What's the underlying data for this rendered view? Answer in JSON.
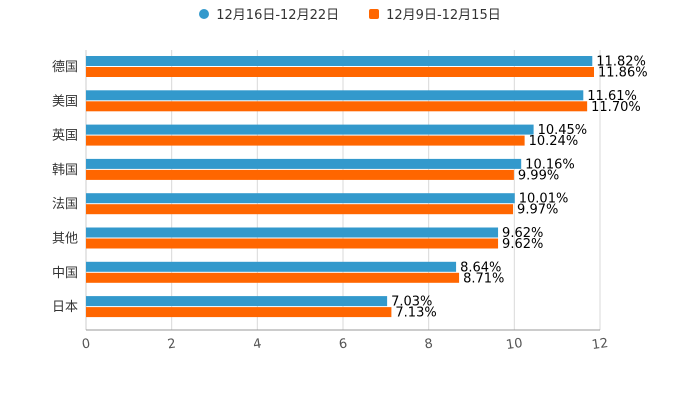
{
  "chart_data": {
    "type": "bar",
    "orientation": "horizontal",
    "categories": [
      "德国",
      "美国",
      "英国",
      "韩国",
      "法国",
      "其他",
      "中国",
      "日本"
    ],
    "series": [
      {
        "name": "12月16日-12月22日",
        "color": "#3399cc",
        "marker": "circle",
        "values": [
          11.82,
          11.61,
          10.45,
          10.16,
          10.01,
          9.62,
          8.64,
          7.03
        ],
        "labels": [
          "11.82%",
          "11.61%",
          "10.45%",
          "10.16%",
          "10.01%",
          "9.62%",
          "8.64%",
          "7.03%"
        ]
      },
      {
        "name": "12月9日-12月15日",
        "color": "#ff6600",
        "marker": "square",
        "values": [
          11.86,
          11.7,
          10.24,
          9.99,
          9.97,
          9.62,
          8.71,
          7.13
        ],
        "labels": [
          "11.86%",
          "11.70%",
          "10.24%",
          "9.99%",
          "9.97%",
          "9.62%",
          "8.71%",
          "7.13%"
        ]
      }
    ],
    "xlim": [
      0,
      12
    ],
    "x_ticks": [
      0,
      2,
      4,
      6,
      8,
      10,
      12
    ],
    "x_tick_labels": [
      "0",
      "2",
      "4",
      "6",
      "8",
      "10",
      "12"
    ],
    "grid": true,
    "legend_position": "top-center",
    "title": "",
    "xlabel": "",
    "ylabel": ""
  }
}
